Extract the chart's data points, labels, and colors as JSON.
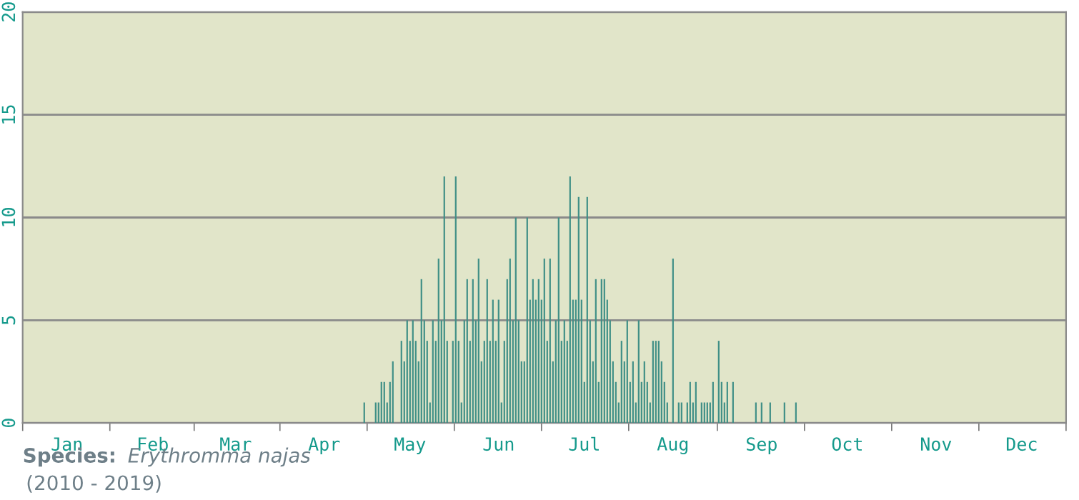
{
  "chart_data": {
    "type": "bar",
    "color": "#3f8f86",
    "categories": [
      null,
      null,
      null,
      null,
      null,
      null,
      null,
      null,
      null,
      null,
      null,
      null,
      null,
      null,
      null,
      "Jan",
      null,
      null,
      null,
      null,
      null,
      null,
      null,
      null,
      null,
      null,
      null,
      null,
      null,
      null,
      null,
      null,
      null,
      null,
      null,
      null,
      null,
      null,
      null,
      null,
      null,
      null,
      null,
      null,
      null,
      "Feb",
      null,
      null,
      null,
      null,
      null,
      null,
      null,
      null,
      null,
      null,
      null,
      null,
      null,
      null,
      null,
      null,
      null,
      null,
      null,
      null,
      null,
      null,
      null,
      null,
      null,
      null,
      null,
      null,
      "Mar",
      null,
      null,
      null,
      null,
      null,
      null,
      null,
      null,
      null,
      null,
      null,
      null,
      null,
      null,
      null,
      null,
      null,
      null,
      null,
      null,
      null,
      null,
      null,
      null,
      null,
      null,
      null,
      null,
      null,
      null,
      "Apr",
      null,
      null,
      null,
      null,
      null,
      null,
      null,
      null,
      null,
      null,
      null,
      null,
      null,
      null,
      null,
      null,
      null,
      null,
      null,
      null,
      null,
      null,
      null,
      null,
      null,
      null,
      null,
      null,
      null,
      "May",
      null,
      null,
      null,
      null,
      null,
      null,
      null,
      null,
      null,
      null,
      null,
      null,
      null,
      null,
      null,
      null,
      null,
      null,
      null,
      null,
      null,
      null,
      null,
      null,
      null,
      null,
      null,
      null,
      null,
      null,
      "Jun",
      null,
      null,
      null,
      null,
      null,
      null,
      null,
      null,
      null,
      null,
      null,
      null,
      null,
      null,
      null,
      null,
      null,
      null,
      null,
      null,
      null,
      null,
      null,
      null,
      null,
      null,
      null,
      null,
      null,
      "Jul",
      null,
      null,
      null,
      null,
      null,
      null,
      null,
      null,
      null,
      null,
      null,
      null,
      null,
      null,
      null,
      null,
      null,
      null,
      null,
      null,
      null,
      null,
      null,
      null,
      null,
      null,
      null,
      null,
      null,
      null,
      "Aug",
      null,
      null,
      null,
      null,
      null,
      null,
      null,
      null,
      null,
      null,
      null,
      null,
      null,
      null,
      null,
      null,
      null,
      null,
      null,
      null,
      null,
      null,
      null,
      null,
      null,
      null,
      null,
      null,
      null,
      null,
      "Sep",
      null,
      null,
      null,
      null,
      null,
      null,
      null,
      null,
      null,
      null,
      null,
      null,
      null,
      null,
      null,
      null,
      null,
      null,
      null,
      null,
      null,
      null,
      null,
      null,
      null,
      null,
      null,
      null,
      null,
      "Oct",
      null,
      null,
      null,
      null,
      null,
      null,
      null,
      null,
      null,
      null,
      null,
      null,
      null,
      null,
      null,
      null,
      null,
      null,
      null,
      null,
      null,
      null,
      null,
      null,
      null,
      null,
      null,
      null,
      null,
      null,
      "Nov",
      null,
      null,
      null,
      null,
      null,
      null,
      null,
      null,
      null,
      null,
      null,
      null,
      null,
      null,
      null,
      null,
      null,
      null,
      null,
      null,
      null,
      null,
      null,
      null,
      null,
      null,
      null,
      null,
      null,
      "Dec",
      null,
      null,
      null,
      null,
      null,
      null,
      null,
      null,
      null,
      null,
      null,
      null,
      null,
      null,
      null
    ],
    "values": [
      0,
      0,
      0,
      0,
      0,
      0,
      0,
      0,
      0,
      0,
      0,
      0,
      0,
      0,
      0,
      0,
      0,
      0,
      0,
      0,
      0,
      0,
      0,
      0,
      0,
      0,
      0,
      0,
      0,
      0,
      0,
      0,
      0,
      0,
      0,
      0,
      0,
      0,
      0,
      0,
      0,
      0,
      0,
      0,
      0,
      0,
      0,
      0,
      0,
      0,
      0,
      0,
      0,
      0,
      0,
      0,
      0,
      0,
      0,
      0,
      0,
      0,
      0,
      0,
      0,
      0,
      0,
      0,
      0,
      0,
      0,
      0,
      0,
      0,
      0,
      0,
      0,
      0,
      0,
      0,
      0,
      0,
      0,
      0,
      0,
      0,
      0,
      0,
      0,
      0,
      0,
      0,
      0,
      0,
      0,
      0,
      0,
      0,
      0,
      0,
      0,
      0,
      0,
      0,
      0,
      0,
      0,
      0,
      0,
      0,
      0,
      0,
      0,
      0,
      0,
      0,
      0,
      0,
      0,
      1,
      0,
      0,
      0,
      1,
      1,
      2,
      2,
      1,
      2,
      3,
      0,
      0,
      4,
      3,
      5,
      4,
      5,
      4,
      3,
      7,
      5,
      4,
      1,
      5,
      4,
      8,
      5,
      12,
      4,
      0,
      4,
      12,
      4,
      1,
      5,
      7,
      4,
      7,
      5,
      8,
      3,
      4,
      7,
      4,
      6,
      4,
      6,
      1,
      4,
      7,
      8,
      5,
      10,
      5,
      3,
      3,
      10,
      6,
      7,
      6,
      7,
      6,
      8,
      4,
      8,
      3,
      5,
      10,
      4,
      5,
      4,
      12,
      6,
      6,
      11,
      6,
      2,
      11,
      5,
      3,
      7,
      2,
      7,
      7,
      6,
      5,
      3,
      2,
      1,
      4,
      3,
      5,
      2,
      3,
      1,
      5,
      2,
      3,
      2,
      1,
      4,
      4,
      4,
      3,
      2,
      1,
      0,
      8,
      0,
      1,
      1,
      0,
      1,
      2,
      1,
      2,
      0,
      1,
      1,
      1,
      1,
      2,
      0,
      4,
      2,
      1,
      2,
      0,
      2,
      0,
      0,
      0,
      0,
      0,
      0,
      0,
      1,
      0,
      1,
      0,
      0,
      1,
      0,
      0,
      0,
      0,
      1,
      0,
      0,
      0,
      1,
      0,
      0,
      0,
      0,
      0,
      0,
      0,
      0,
      0,
      0,
      0,
      0,
      0,
      0,
      0,
      0,
      0,
      0,
      0,
      0,
      0,
      0,
      0,
      0,
      0,
      0,
      0,
      0,
      0,
      0,
      0,
      0,
      0,
      0,
      0,
      0,
      0,
      0,
      0,
      0,
      0,
      0,
      0,
      0,
      0,
      0,
      0,
      0,
      0,
      0,
      0,
      0,
      0,
      0,
      0,
      0,
      0,
      0,
      0,
      0,
      0,
      0,
      0,
      0,
      0,
      0,
      0,
      0,
      0,
      0,
      0,
      0,
      0,
      0,
      0,
      0,
      0,
      0,
      0,
      0,
      0,
      0,
      0,
      0,
      0,
      0,
      0,
      0,
      0,
      0,
      0,
      0,
      0,
      0
    ],
    "ylim": [
      0,
      20
    ],
    "yticks": [
      0,
      5,
      10,
      15,
      20
    ],
    "grid": "y",
    "annotations": [
      "Species:",
      "Erythromma najas",
      "(2010 - 2019)"
    ]
  }
}
